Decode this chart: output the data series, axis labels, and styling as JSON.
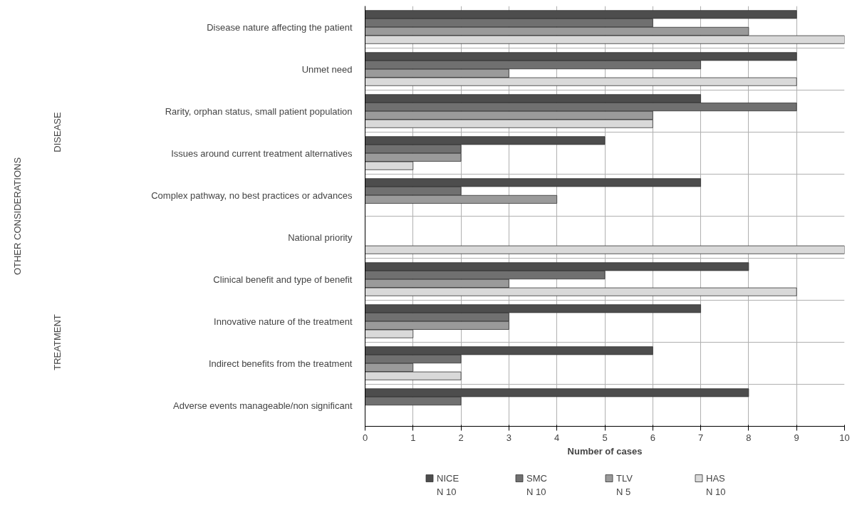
{
  "chart_data": {
    "type": "bar",
    "orientation": "horizontal",
    "xlabel": "Number of cases",
    "categories": [
      "Disease nature affecting the patient",
      "Unmet need",
      "Rarity, orphan status, small patient population",
      "Issues around current treatment alternatives",
      "Complex pathway, no best practices or advances",
      "National priority",
      "Clinical benefit and type of benefit",
      "Innovative nature of the treatment",
      "Indirect benefits from the treatment",
      "Adverse events manageable/non significant"
    ],
    "series": [
      {
        "name": "NICE",
        "color": "#4d4d4d",
        "values": [
          9,
          9,
          7,
          5,
          7,
          null,
          8,
          7,
          6,
          8
        ]
      },
      {
        "name": "SMC",
        "color": "#707070",
        "values": [
          6,
          7,
          9,
          2,
          2,
          null,
          5,
          3,
          2,
          2
        ]
      },
      {
        "name": "TLV",
        "color": "#9a9a9a",
        "values": [
          8,
          3,
          6,
          2,
          4,
          null,
          3,
          3,
          1,
          null
        ]
      },
      {
        "name": "HAS",
        "color": "#d9d9d9",
        "values": [
          10,
          9,
          6,
          1,
          null,
          10,
          9,
          1,
          2,
          null
        ]
      }
    ],
    "xlim": [
      0,
      10
    ],
    "xticks": [
      0,
      1,
      2,
      3,
      4,
      5,
      6,
      7,
      8,
      9,
      10
    ],
    "grid": "x",
    "legend": "bottom",
    "annotations": [
      "OTHER CONSIDERATIONS",
      "DISEASE",
      "TREATMENT",
      "N 10",
      "N 10",
      "N 5",
      "N 10"
    ]
  }
}
